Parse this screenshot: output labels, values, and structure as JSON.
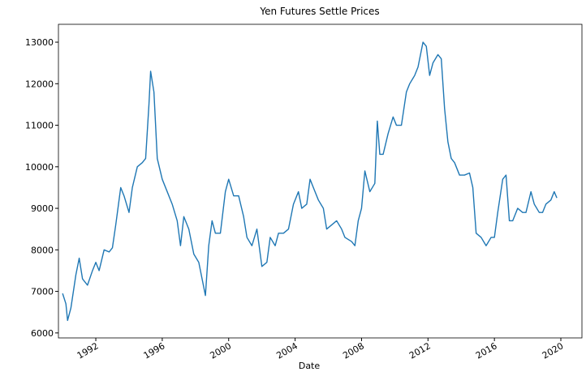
{
  "chart_data": {
    "type": "line",
    "title": "Yen Futures Settle Prices",
    "x_label": "Date",
    "x": [
      1990.0,
      1990.2,
      1990.3,
      1990.5,
      1990.8,
      1991.0,
      1991.2,
      1991.5,
      1991.8,
      1992.0,
      1992.2,
      1992.5,
      1992.8,
      1993.0,
      1993.2,
      1993.5,
      1993.7,
      1994.0,
      1994.2,
      1994.5,
      1994.8,
      1995.0,
      1995.2,
      1995.3,
      1995.5,
      1995.7,
      1996.0,
      1996.3,
      1996.6,
      1996.9,
      1997.1,
      1997.3,
      1997.6,
      1997.9,
      1998.2,
      1998.5,
      1998.6,
      1998.8,
      1999.0,
      1999.2,
      1999.5,
      1999.8,
      2000.0,
      2000.3,
      2000.6,
      2000.9,
      2001.1,
      2001.4,
      2001.7,
      2002.0,
      2002.3,
      2002.5,
      2002.8,
      2003.0,
      2003.3,
      2003.6,
      2003.9,
      2004.2,
      2004.4,
      2004.7,
      2004.9,
      2005.1,
      2005.4,
      2005.7,
      2005.9,
      2006.2,
      2006.5,
      2006.8,
      2007.0,
      2007.4,
      2007.6,
      2007.8,
      2008.0,
      2008.2,
      2008.5,
      2008.8,
      2008.95,
      2009.1,
      2009.3,
      2009.6,
      2009.9,
      2010.1,
      2010.4,
      2010.7,
      2010.9,
      2011.2,
      2011.4,
      2011.7,
      2011.9,
      2012.1,
      2012.3,
      2012.6,
      2012.8,
      2013.0,
      2013.2,
      2013.4,
      2013.6,
      2013.9,
      2014.2,
      2014.5,
      2014.7,
      2014.9,
      2015.2,
      2015.5,
      2015.8,
      2016.0,
      2016.2,
      2016.5,
      2016.7,
      2016.9,
      2017.1,
      2017.4,
      2017.7,
      2017.9,
      2018.2,
      2018.4,
      2018.7,
      2018.9,
      2019.1,
      2019.4,
      2019.6,
      2019.76
    ],
    "series": [
      {
        "color": "#1f77b4",
        "values": [
          6950,
          6700,
          6300,
          6600,
          7400,
          7800,
          7300,
          7150,
          7500,
          7700,
          7500,
          8000,
          7950,
          8050,
          8600,
          9500,
          9300,
          8900,
          9500,
          10000,
          10100,
          10200,
          11500,
          12300,
          11800,
          10200,
          9700,
          9400,
          9100,
          8700,
          8100,
          8800,
          8500,
          7900,
          7700,
          7100,
          6900,
          8100,
          8700,
          8400,
          8400,
          9400,
          9700,
          9300,
          9300,
          8800,
          8300,
          8100,
          8500,
          7600,
          7700,
          8300,
          8100,
          8400,
          8400,
          8500,
          9100,
          9400,
          9000,
          9100,
          9700,
          9500,
          9200,
          9000,
          8500,
          8600,
          8700,
          8500,
          8300,
          8200,
          8100,
          8700,
          9000,
          9900,
          9400,
          9600,
          11100,
          10300,
          10300,
          10800,
          11200,
          11000,
          11000,
          11800,
          12000,
          12200,
          12400,
          13000,
          12900,
          12200,
          12500,
          12700,
          12600,
          11400,
          10600,
          10200,
          10100,
          9800,
          9800,
          9850,
          9500,
          8400,
          8300,
          8100,
          8300,
          8300,
          8900,
          9700,
          9800,
          8700,
          8700,
          9000,
          8900,
          8900,
          9400,
          9100,
          8900,
          8900,
          9100,
          9200,
          9400,
          9250
        ]
      }
    ],
    "xlim": [
      1989.75,
      2021.27
    ],
    "xticks": [
      1992,
      1996,
      2000,
      2004,
      2008,
      2012,
      2016,
      2020
    ],
    "ylim": [
      5880,
      13430
    ],
    "yticks": [
      6000,
      7000,
      8000,
      9000,
      10000,
      11000,
      12000,
      13000
    ]
  }
}
